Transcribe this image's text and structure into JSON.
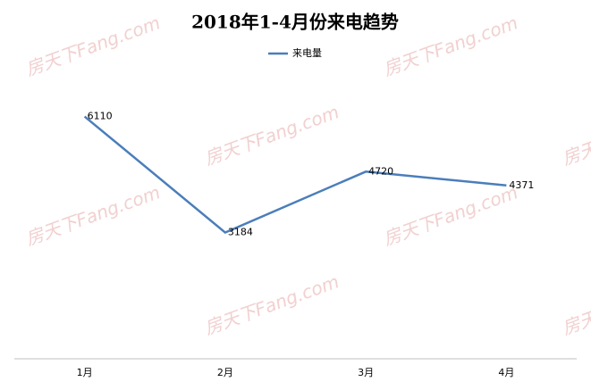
{
  "chart_data": {
    "type": "line",
    "title": "2018年1-4月份来电趋势",
    "categories": [
      "1月",
      "2月",
      "3月",
      "4月"
    ],
    "series": [
      {
        "name": "来电量",
        "color": "#4a7ebb",
        "values": [
          6110,
          3184,
          4720,
          4371
        ]
      }
    ],
    "ylim": [
      0,
      7000
    ],
    "legend": "top",
    "data_labels": true,
    "watermark": "房天下Fang.com"
  }
}
